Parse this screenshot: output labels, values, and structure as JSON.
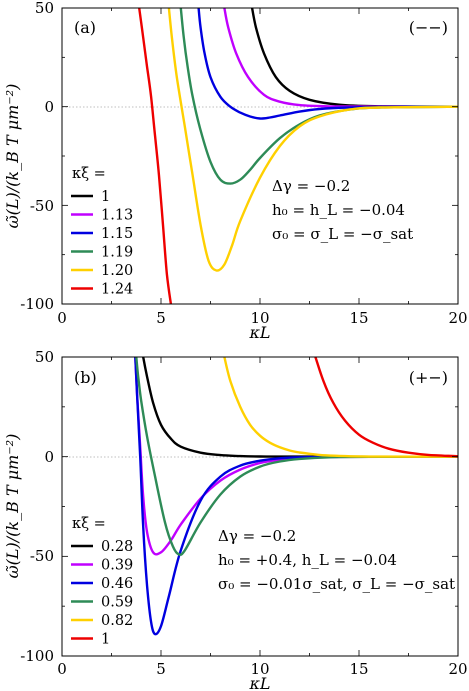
{
  "chart_data": [
    {
      "type": "line",
      "panel_label": "(a)",
      "corner_label": "(−−)",
      "xlabel": "κL",
      "ylabel": "ω̃(L)/(k_B T μm⁻²)",
      "xlim": [
        0,
        20
      ],
      "ylim": [
        -100,
        50
      ],
      "xticks": [
        "0",
        "5",
        "10",
        "15",
        "20"
      ],
      "yticks": [
        "50",
        "0",
        "-50",
        "-100"
      ],
      "zero_line": true,
      "legend_title": "κξ =",
      "legend_position": "left",
      "annotations": [
        "Δγ = −0.2",
        "h₀ = h_L = −0.04",
        "σ₀ = σ_L = −σ_sat"
      ],
      "series": [
        {
          "name": "1",
          "color": "#000000",
          "x": [
            9.6,
            9.8,
            10.2,
            10.8,
            11.5,
            12.5,
            14,
            16,
            20
          ],
          "y": [
            50,
            40,
            27,
            15,
            8,
            3.5,
            1,
            0.2,
            0
          ]
        },
        {
          "name": "1.13",
          "color": "#c000ff",
          "x": [
            8.2,
            8.4,
            8.8,
            9.4,
            10.2,
            11,
            12,
            13.5,
            16,
            20
          ],
          "y": [
            50,
            40,
            27,
            15,
            6,
            2.5,
            0.8,
            0.15,
            0.02,
            0
          ]
        },
        {
          "name": "1.15",
          "color": "#0000e0",
          "x": [
            6.9,
            7.0,
            7.2,
            7.5,
            8.0,
            8.5,
            9.0,
            9.5,
            10.0,
            10.5,
            11.0,
            12.0,
            13.0,
            14.5,
            16,
            20
          ],
          "y": [
            50,
            40,
            27,
            15,
            5,
            0,
            -3,
            -5,
            -6,
            -5.5,
            -4.5,
            -2.5,
            -1.2,
            -0.4,
            -0.1,
            0
          ]
        },
        {
          "name": "1.19",
          "color": "#2e8b57",
          "x": [
            6.0,
            6.15,
            6.35,
            6.6,
            7.0,
            7.5,
            8.0,
            8.5,
            9.0,
            9.5,
            10.0,
            11.0,
            12.0,
            13.0,
            14.5,
            16,
            20
          ],
          "y": [
            50,
            35,
            20,
            5,
            -12,
            -28,
            -37,
            -39,
            -37,
            -32,
            -26,
            -16,
            -9,
            -4.5,
            -1.5,
            -0.4,
            0
          ]
        },
        {
          "name": "1.20",
          "color": "#ffd000",
          "x": [
            5.4,
            5.55,
            5.8,
            6.2,
            6.6,
            7.0,
            7.4,
            7.8,
            8.2,
            8.6,
            9.0,
            10.0,
            11.0,
            12.0,
            13.0,
            14.5,
            16,
            20
          ],
          "y": [
            50,
            35,
            15,
            -10,
            -35,
            -60,
            -78,
            -83,
            -80,
            -70,
            -58,
            -36,
            -20,
            -10,
            -5,
            -1.5,
            -0.4,
            0
          ]
        },
        {
          "name": "1.24",
          "color": "#ee0000",
          "x": [
            3.9,
            4.1,
            4.3,
            4.5,
            4.7,
            4.9,
            5.1,
            5.3,
            5.5
          ],
          "y": [
            50,
            35,
            20,
            5,
            -15,
            -35,
            -60,
            -85,
            -100
          ]
        }
      ]
    },
    {
      "type": "line",
      "panel_label": "(b)",
      "corner_label": "(+−)",
      "xlabel": "κL",
      "ylabel": "ω̃(L)/(k_B T μm⁻²)",
      "xlim": [
        0,
        20
      ],
      "ylim": [
        -100,
        50
      ],
      "xticks": [
        "0",
        "5",
        "10",
        "15",
        "20"
      ],
      "yticks": [
        "50",
        "0",
        "-50",
        "-100"
      ],
      "zero_line": true,
      "legend_title": "κξ =",
      "legend_position": "left",
      "annotations": [
        "Δγ = −0.2",
        "h₀ = +0.4, h_L = −0.04",
        "σ₀ = −0.01σ_sat, σ_L = −σ_sat"
      ],
      "series": [
        {
          "name": "0.28",
          "color": "#000000",
          "x": [
            4.1,
            4.3,
            4.6,
            5.0,
            5.5,
            6.0,
            7.0,
            8.0,
            9.0,
            10.0,
            12.0,
            20
          ],
          "y": [
            50,
            40,
            27,
            16,
            9,
            5,
            2,
            0.8,
            0.3,
            0.1,
            0.02,
            0
          ]
        },
        {
          "name": "0.39",
          "color": "#c000ff",
          "x": [
            3.7,
            3.8,
            3.95,
            4.1,
            4.3,
            4.6,
            5.0,
            5.5,
            6.0,
            7.0,
            8.0,
            9.0,
            10.0,
            11.0,
            12.0,
            14.0,
            20
          ],
          "y": [
            50,
            30,
            5,
            -20,
            -38,
            -48,
            -48,
            -42,
            -34,
            -21,
            -12,
            -6.5,
            -3.2,
            -1.5,
            -0.7,
            -0.1,
            0
          ]
        },
        {
          "name": "0.46",
          "color": "#0000e0",
          "x": [
            3.7,
            3.8,
            3.95,
            4.1,
            4.3,
            4.5,
            4.7,
            5.0,
            5.4,
            6.0,
            7.0,
            8.0,
            9.0,
            10.0,
            11.0,
            12.0,
            14.0,
            20
          ],
          "y": [
            50,
            30,
            0,
            -35,
            -65,
            -83,
            -89,
            -85,
            -70,
            -47,
            -22,
            -10,
            -4.5,
            -2,
            -0.8,
            -0.3,
            -0.05,
            0
          ]
        },
        {
          "name": "0.59",
          "color": "#2e8b57",
          "x": [
            3.75,
            3.85,
            4.0,
            4.3,
            4.7,
            5.2,
            5.6,
            5.9,
            6.2,
            7.0,
            8.0,
            9.0,
            10.0,
            11.0,
            12.0,
            13.5,
            16,
            20
          ],
          "y": [
            50,
            40,
            28,
            10,
            -10,
            -33,
            -45,
            -49,
            -47,
            -33,
            -19,
            -10,
            -5,
            -2.4,
            -1.1,
            -0.3,
            -0.05,
            0
          ]
        },
        {
          "name": "0.82",
          "color": "#ffd000",
          "x": [
            8.2,
            8.5,
            9.0,
            9.5,
            10.0,
            10.5,
            11.0,
            11.5,
            12.0,
            13.0,
            14.0,
            15.0,
            16.0,
            20
          ],
          "y": [
            50,
            38,
            25,
            16,
            10.5,
            7,
            4.7,
            3.1,
            2.1,
            0.9,
            0.4,
            0.15,
            0.05,
            0
          ]
        },
        {
          "name": "1",
          "color": "#ee0000",
          "x": [
            12.8,
            13.2,
            13.7,
            14.3,
            15.0,
            15.7,
            16.5,
            17.5,
            18.5,
            20
          ],
          "y": [
            50,
            38,
            27,
            18,
            11,
            7,
            4,
            2,
            0.9,
            0.2
          ]
        }
      ]
    }
  ]
}
